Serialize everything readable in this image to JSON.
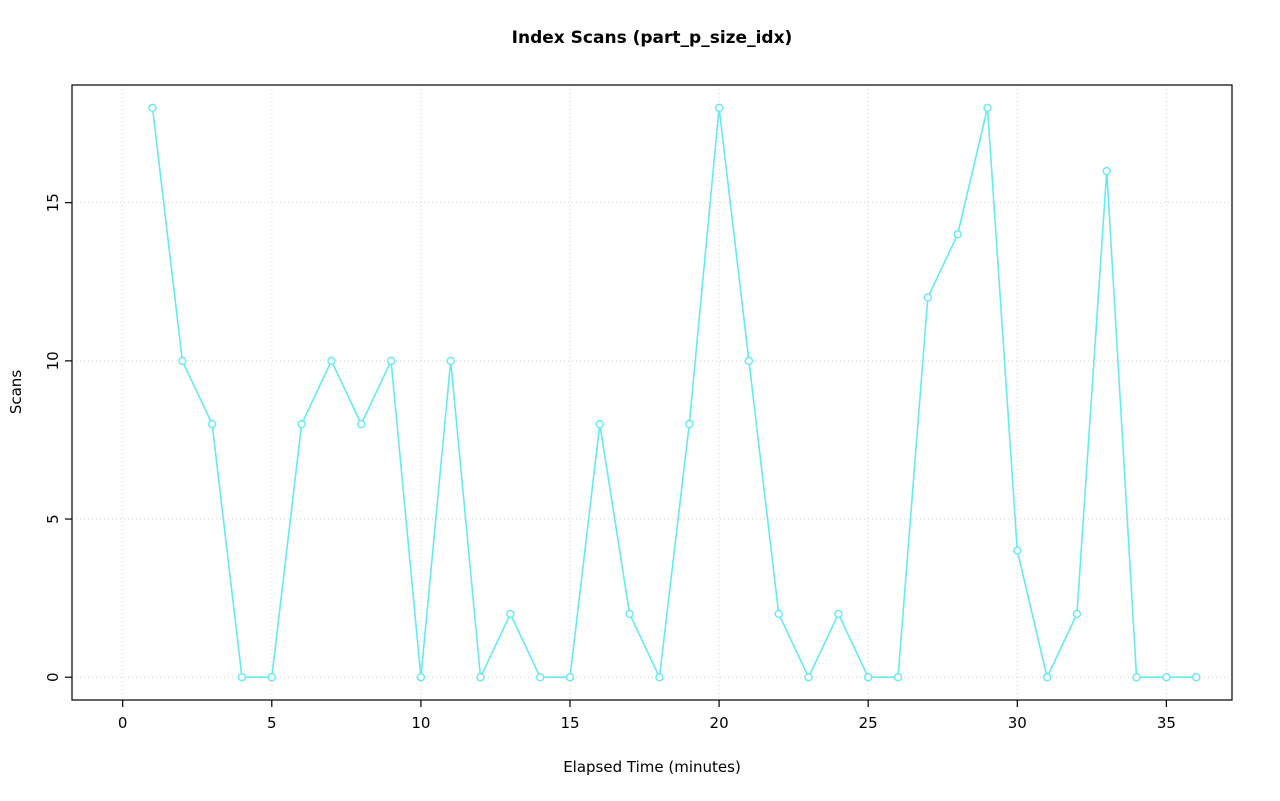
{
  "chart_data": {
    "type": "line",
    "title": "Index Scans (part_p_size_idx)",
    "xlabel": "Elapsed Time (minutes)",
    "ylabel": "Scans",
    "x": [
      1,
      2,
      3,
      4,
      5,
      6,
      7,
      8,
      9,
      10,
      11,
      12,
      13,
      14,
      15,
      16,
      17,
      18,
      19,
      20,
      21,
      22,
      23,
      24,
      25,
      26,
      27,
      28,
      29,
      30,
      31,
      32,
      33,
      34,
      35,
      36
    ],
    "values": [
      18,
      10,
      8,
      0,
      0,
      8,
      10,
      8,
      10,
      0,
      10,
      0,
      2,
      0,
      0,
      8,
      2,
      0,
      8,
      18,
      10,
      2,
      0,
      2,
      0,
      0,
      12,
      14,
      18,
      4,
      0,
      2,
      16,
      0,
      0,
      0
    ],
    "xticks": [
      0,
      5,
      10,
      15,
      20,
      25,
      30,
      35
    ],
    "yticks": [
      0,
      5,
      10,
      15
    ],
    "xlim": [
      -1.7,
      37.2
    ],
    "ylim": [
      -0.72,
      18.72
    ],
    "grid": true,
    "legend": "none",
    "line_color": "#67E9F1",
    "marker": "open-circle",
    "grid_color": "#D3D3D3",
    "axis_color": "#000000",
    "background": "#FFFFFF"
  }
}
